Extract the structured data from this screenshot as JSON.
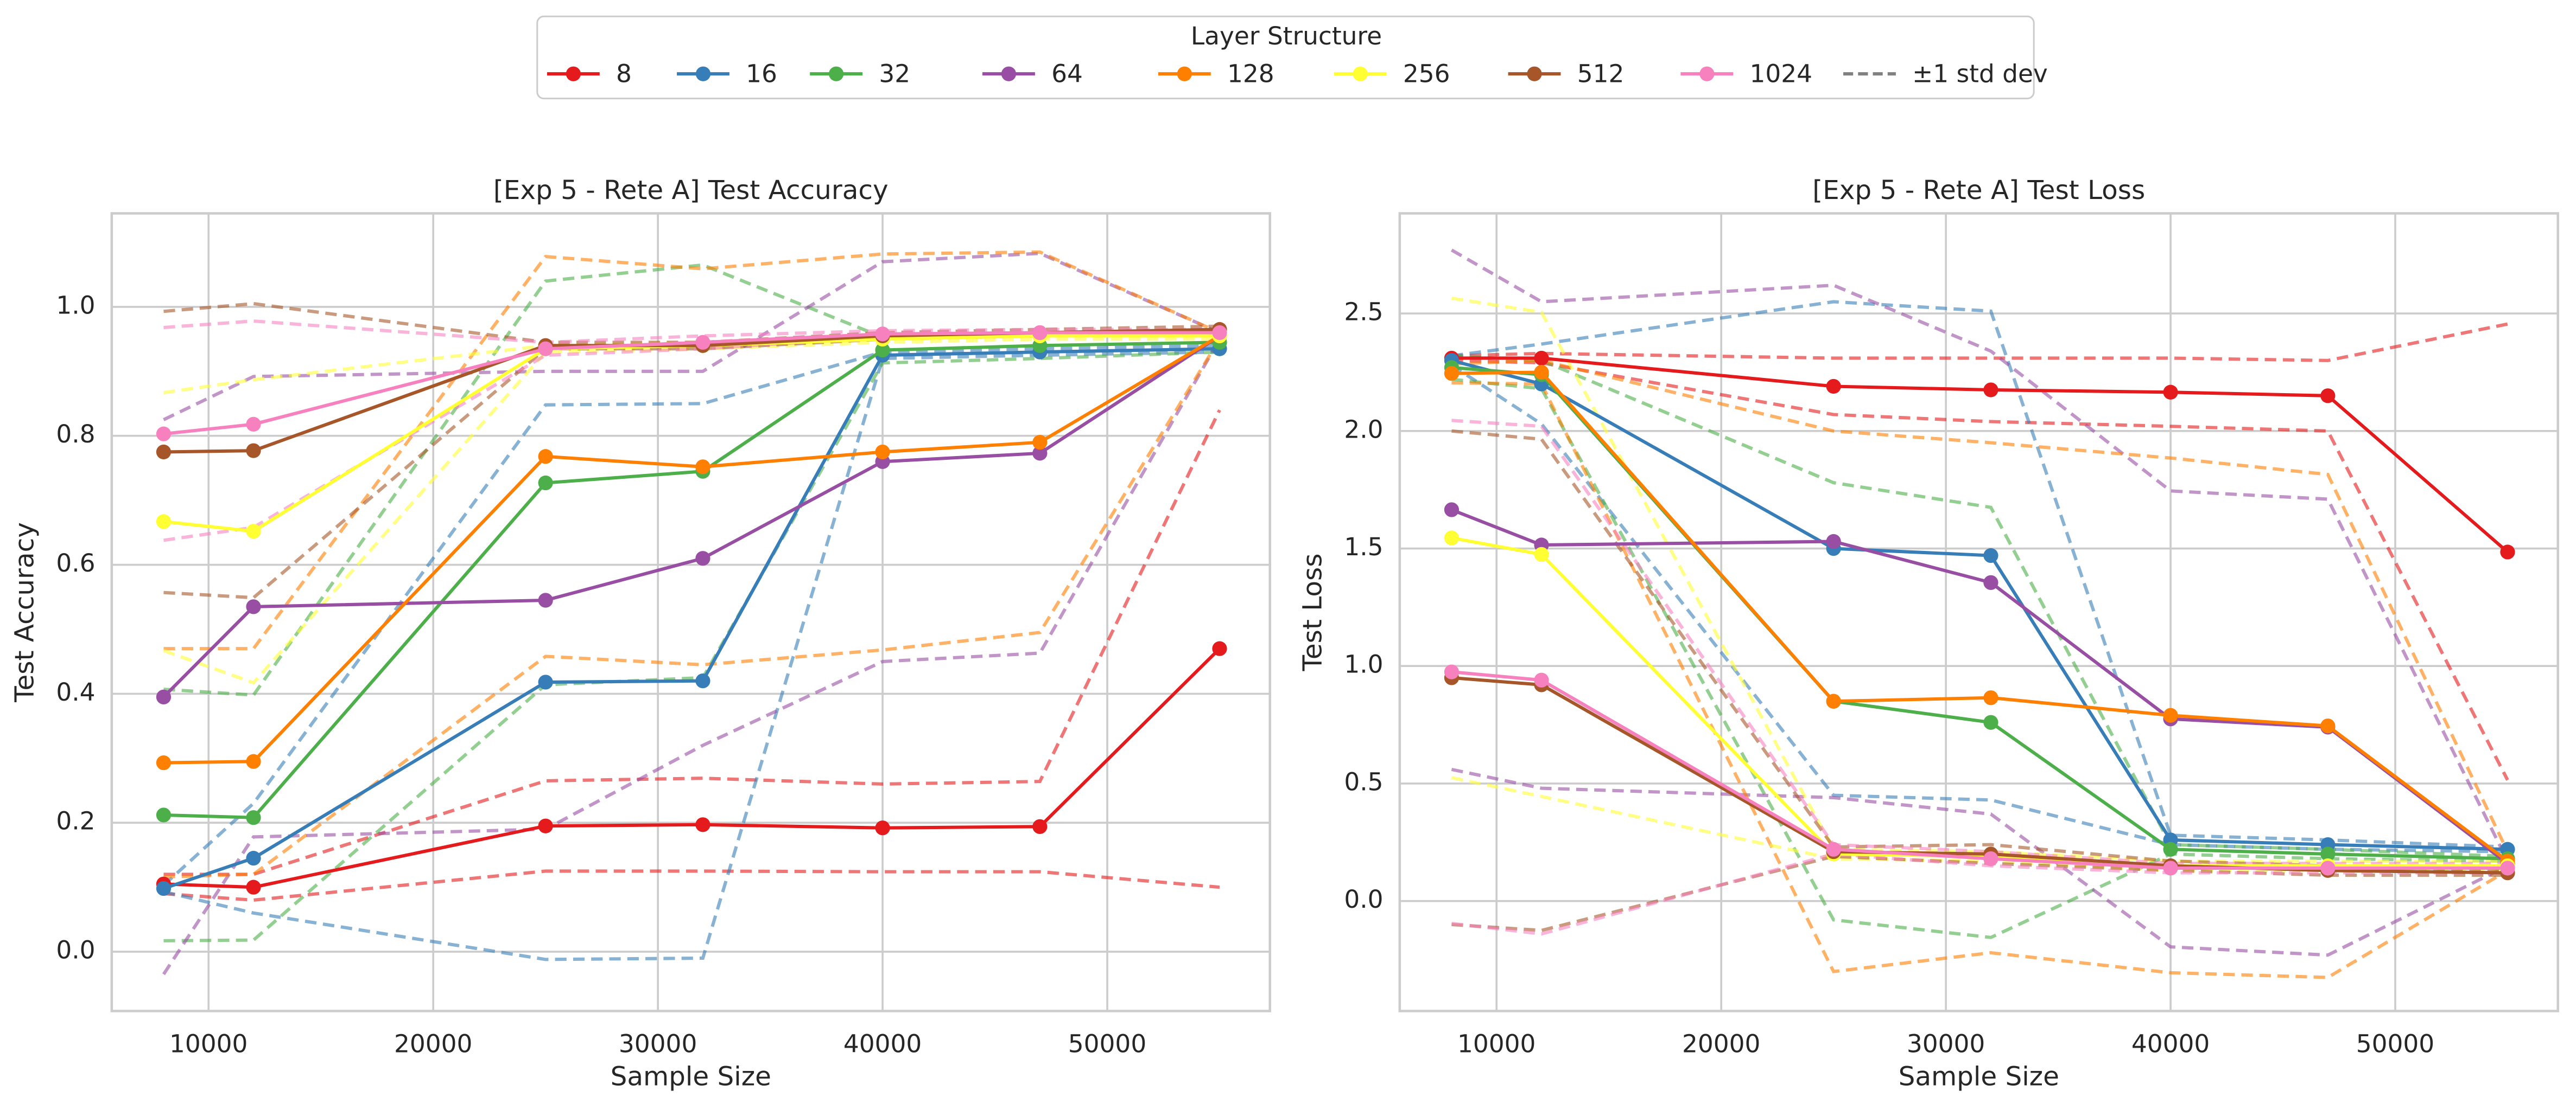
{
  "legend": {
    "title": "Layer Structure",
    "std_label": "±1 std dev",
    "std_color": "#808080"
  },
  "chart_data": [
    {
      "type": "line",
      "title": "[Exp 5 - Rete A] Test Accuracy",
      "x_label": "Sample Size",
      "y_label": "Test Accuracy",
      "x": [
        8000,
        12000,
        25000,
        32000,
        40000,
        47000,
        55000
      ],
      "xlim": [
        5690,
        57240
      ],
      "xticks": [
        10000,
        20000,
        30000,
        40000,
        50000
      ],
      "ylim": [
        -0.092,
        1.145
      ],
      "yticks": [
        {
          "value": 0,
          "label": "0.0"
        },
        0.2,
        0.4,
        0.6,
        0.8,
        {
          "value": 1,
          "label": "1.0"
        }
      ],
      "grid": true,
      "series": [
        {
          "name": "8",
          "color": "#e41a1c",
          "values": [
            0.105,
            0.1,
            0.195,
            0.197,
            0.192,
            0.194,
            0.47
          ],
          "std": [
            0.015,
            0.02,
            0.07,
            0.072,
            0.068,
            0.07,
            0.37
          ]
        },
        {
          "name": "16",
          "color": "#377eb8",
          "values": [
            0.098,
            0.145,
            0.418,
            0.42,
            0.925,
            0.93,
            0.935
          ],
          "std": [
            0.005,
            0.085,
            0.43,
            0.43,
            0.005,
            0.005,
            0.005
          ]
        },
        {
          "name": "32",
          "color": "#4daf4a",
          "values": [
            0.212,
            0.208,
            0.727,
            0.745,
            0.933,
            0.94,
            0.945
          ],
          "std": [
            0.195,
            0.19,
            0.313,
            0.32,
            0.02,
            0.02,
            0.015
          ]
        },
        {
          "name": "64",
          "color": "#984ea3",
          "values": [
            0.395,
            0.535,
            0.545,
            0.61,
            0.76,
            0.773,
            0.955
          ],
          "std": [
            0.43,
            0.357,
            0.355,
            0.29,
            0.31,
            0.31,
            0.005
          ]
        },
        {
          "name": "128",
          "color": "#ff7f00",
          "values": [
            0.293,
            0.295,
            0.768,
            0.752,
            0.775,
            0.79,
            0.955
          ],
          "std": [
            0.177,
            0.175,
            0.31,
            0.307,
            0.307,
            0.295,
            0.005
          ]
        },
        {
          "name": "256",
          "color": "#ffff33",
          "values": [
            0.667,
            0.652,
            0.935,
            0.94,
            0.95,
            0.955,
            0.955
          ],
          "std": [
            0.2,
            0.235,
            0.005,
            0.005,
            0.005,
            0.005,
            0.005
          ]
        },
        {
          "name": "512",
          "color": "#a65628",
          "values": [
            0.775,
            0.777,
            0.94,
            0.94,
            0.955,
            0.96,
            0.965
          ],
          "std": [
            0.218,
            0.228,
            0.005,
            0.005,
            0.005,
            0.005,
            0.005
          ]
        },
        {
          "name": "1024",
          "color": "#f781bf",
          "values": [
            0.803,
            0.818,
            0.935,
            0.945,
            0.958,
            0.96,
            0.96
          ],
          "std": [
            0.165,
            0.16,
            0.01,
            0.01,
            0.005,
            0.005,
            0.005
          ]
        }
      ]
    },
    {
      "type": "line",
      "title": "[Exp 5 - Rete A] Test Loss",
      "x_label": "Sample Size",
      "y_label": "Test Loss",
      "x": [
        8000,
        12000,
        25000,
        32000,
        40000,
        47000,
        55000
      ],
      "xlim": [
        5690,
        57240
      ],
      "xticks": [
        10000,
        20000,
        30000,
        40000,
        50000
      ],
      "ylim": [
        -0.468,
        2.926
      ],
      "yticks": [
        {
          "value": 0,
          "label": "0.0"
        },
        0.5,
        {
          "value": 1,
          "label": "1.0"
        },
        1.5,
        {
          "value": 2,
          "label": "2.0"
        },
        2.5
      ],
      "grid": true,
      "series": [
        {
          "name": "8",
          "color": "#e41a1c",
          "values": [
            2.31,
            2.31,
            2.19,
            2.175,
            2.165,
            2.15,
            1.485
          ],
          "std": [
            0.01,
            0.02,
            0.12,
            0.135,
            0.145,
            0.15,
            0.97
          ]
        },
        {
          "name": "16",
          "color": "#377eb8",
          "values": [
            2.3,
            2.2,
            1.5,
            1.47,
            0.26,
            0.24,
            0.22
          ],
          "std": [
            0.02,
            0.17,
            1.05,
            1.04,
            0.02,
            0.02,
            0.01
          ]
        },
        {
          "name": "32",
          "color": "#4daf4a",
          "values": [
            2.27,
            2.24,
            0.85,
            0.76,
            0.22,
            0.2,
            0.18
          ],
          "std": [
            0.05,
            0.06,
            0.93,
            0.915,
            0.02,
            0.02,
            0.01
          ]
        },
        {
          "name": "64",
          "color": "#984ea3",
          "values": [
            1.665,
            1.515,
            1.53,
            1.355,
            0.775,
            0.74,
            0.16
          ],
          "std": [
            1.105,
            1.035,
            1.09,
            0.985,
            0.97,
            0.97,
            0.01
          ]
        },
        {
          "name": "128",
          "color": "#ff7f00",
          "values": [
            2.245,
            2.25,
            0.85,
            0.865,
            0.79,
            0.745,
            0.17
          ],
          "std": [
            0.04,
            0.05,
            1.15,
            1.085,
            1.095,
            1.07,
            0.04
          ]
        },
        {
          "name": "256",
          "color": "#ffff33",
          "values": [
            1.545,
            1.475,
            0.2,
            0.19,
            0.15,
            0.15,
            0.15
          ],
          "std": [
            1.02,
            1.03,
            0.02,
            0.02,
            0.02,
            0.02,
            0.02
          ]
        },
        {
          "name": "512",
          "color": "#a65628",
          "values": [
            0.95,
            0.92,
            0.21,
            0.2,
            0.15,
            0.13,
            0.12
          ],
          "std": [
            1.05,
            1.045,
            0.02,
            0.04,
            0.02,
            0.02,
            0.01
          ]
        },
        {
          "name": "1024",
          "color": "#f781bf",
          "values": [
            0.975,
            0.94,
            0.22,
            0.18,
            0.14,
            0.14,
            0.14
          ],
          "std": [
            1.07,
            1.08,
            0.02,
            0.03,
            0.02,
            0.02,
            0.02
          ]
        }
      ]
    }
  ]
}
